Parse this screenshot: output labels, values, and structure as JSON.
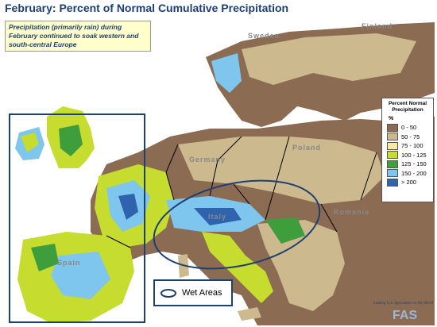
{
  "title": "February: Percent of Normal Cumulative Precipitation",
  "note": "Precipitation (primarily rain) during February continued to soak western and south-central Europe",
  "legend": {
    "title": "Percent Normal Precipitation",
    "unit": "%",
    "items": [
      {
        "label": "0 - 50",
        "color": "#8b6b52"
      },
      {
        "label": "50 - 75",
        "color": "#cdb98e"
      },
      {
        "label": "75 - 100",
        "color": "#f6e9a4"
      },
      {
        "label": "100 - 125",
        "color": "#c6dc2f"
      },
      {
        "label": "125 - 150",
        "color": "#3e9e3c"
      },
      {
        "label": "150 - 200",
        "color": "#7fc6ee"
      },
      {
        "label": "> 200",
        "color": "#2f63ad"
      }
    ]
  },
  "wet_areas_label": "Wet Areas",
  "countries": {
    "finland": "Finland",
    "sweden": "Sweden",
    "poland": "Poland",
    "germany": "Germany",
    "italy": "Italy",
    "romania": "Romania",
    "spain": "Spain"
  },
  "credit": {
    "line": "Linking U.S. Agriculture to the World",
    "logo": "FAS"
  },
  "colors": {
    "sea": "#ffffff",
    "border": "#000000",
    "wet_outline": "#1d3f72"
  }
}
